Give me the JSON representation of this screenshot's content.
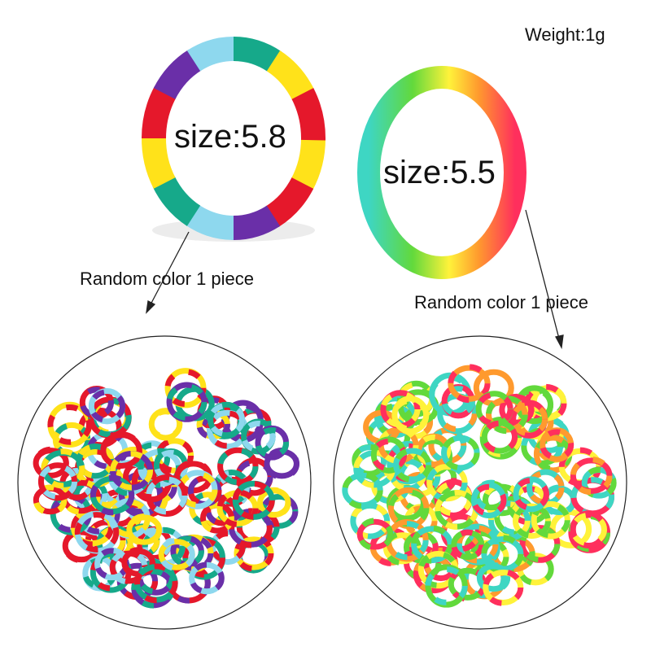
{
  "weight_label": "Weight:1g",
  "ring_a": {
    "size_label": "size:5.8",
    "caption": "Random color 1 piece",
    "colors": [
      "#ffe21a",
      "#e5182b",
      "#6a2fa8",
      "#8ed8ee",
      "#16a98a"
    ]
  },
  "ring_b": {
    "size_label": "size:5.5",
    "caption": "Random color 1 piece",
    "colors": [
      "#ff2f5d",
      "#ff9a2e",
      "#fff23a",
      "#62d93c",
      "#3ed6c3"
    ]
  }
}
